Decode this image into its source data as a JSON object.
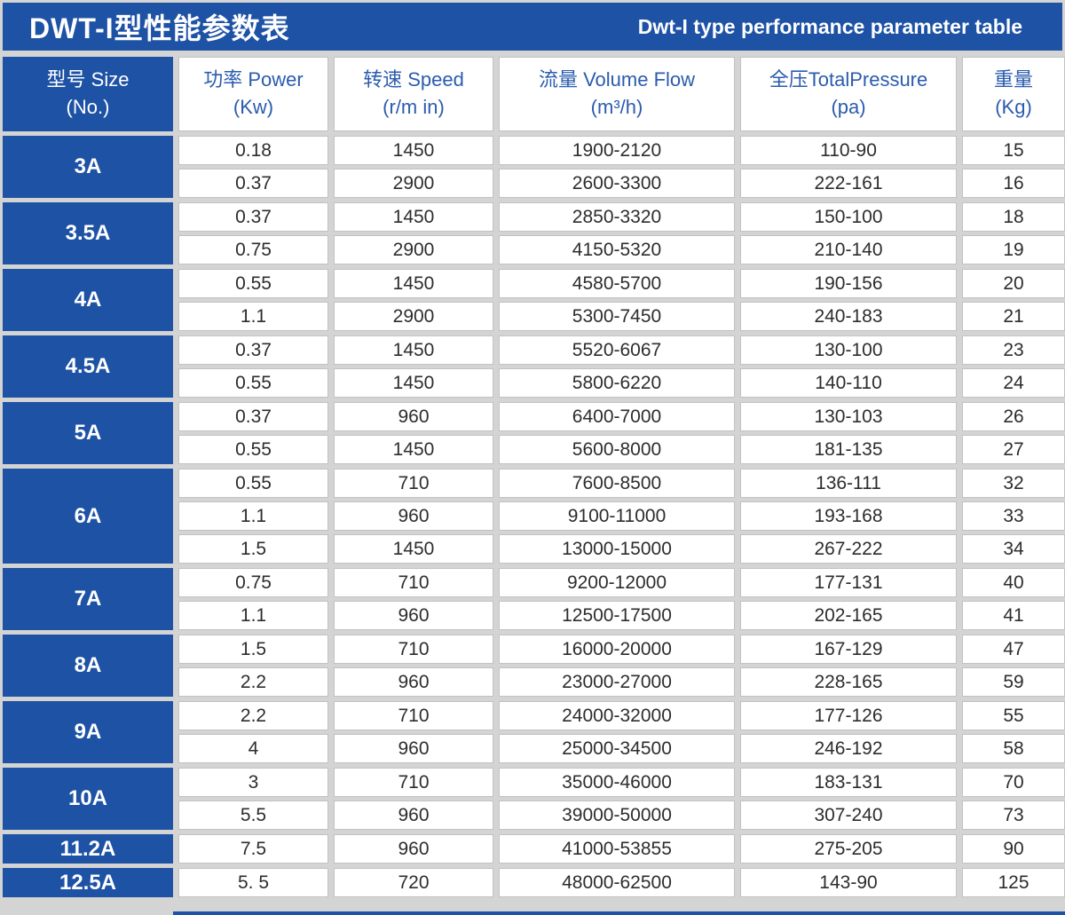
{
  "header": {
    "title_cn": "DWT-I型性能参数表",
    "title_en": "Dwt-I type performance parameter table"
  },
  "colors": {
    "accent_blue": "#1e52a5",
    "header_text_blue": "#2b5cae",
    "grid_gray": "#d4d4d4",
    "cell_white": "#ffffff",
    "data_text": "#2d2d2d"
  },
  "columns": [
    {
      "label": "型号 Size",
      "unit": "(No.)"
    },
    {
      "label": "功率 Power",
      "unit": "(Kw)"
    },
    {
      "label": "转速 Speed",
      "unit": "(r/m in)"
    },
    {
      "label": "流量 Volume Flow",
      "unit": "(m³/h)"
    },
    {
      "label": "全压TotalPressure",
      "unit": "(pa)"
    },
    {
      "label": "重量",
      "unit": "(Kg)"
    }
  ],
  "groups": [
    {
      "size": "3A",
      "rows": [
        [
          "0.18",
          "1450",
          "1900-2120",
          "110-90",
          "15"
        ],
        [
          "0.37",
          "2900",
          "2600-3300",
          "222-161",
          "16"
        ]
      ]
    },
    {
      "size": "3.5A",
      "rows": [
        [
          "0.37",
          "1450",
          "2850-3320",
          "150-100",
          "18"
        ],
        [
          "0.75",
          "2900",
          "4150-5320",
          "210-140",
          "19"
        ]
      ]
    },
    {
      "size": "4A",
      "rows": [
        [
          "0.55",
          "1450",
          "4580-5700",
          "190-156",
          "20"
        ],
        [
          "1.1",
          "2900",
          "5300-7450",
          "240-183",
          "21"
        ]
      ]
    },
    {
      "size": "4.5A",
      "rows": [
        [
          "0.37",
          "1450",
          "5520-6067",
          "130-100",
          "23"
        ],
        [
          "0.55",
          "1450",
          "5800-6220",
          "140-110",
          "24"
        ]
      ]
    },
    {
      "size": "5A",
      "rows": [
        [
          "0.37",
          "960",
          "6400-7000",
          "130-103",
          "26"
        ],
        [
          "0.55",
          "1450",
          "5600-8000",
          "181-135",
          "27"
        ]
      ]
    },
    {
      "size": "6A",
      "rows": [
        [
          "0.55",
          "710",
          "7600-8500",
          "136-111",
          "32"
        ],
        [
          "1.1",
          "960",
          "9100-11000",
          "193-168",
          "33"
        ],
        [
          "1.5",
          "1450",
          "13000-15000",
          "267-222",
          "34"
        ]
      ]
    },
    {
      "size": "7A",
      "rows": [
        [
          "0.75",
          "710",
          "9200-12000",
          "177-131",
          "40"
        ],
        [
          "1.1",
          "960",
          "12500-17500",
          "202-165",
          "41"
        ]
      ]
    },
    {
      "size": "8A",
      "rows": [
        [
          "1.5",
          "710",
          "16000-20000",
          "167-129",
          "47"
        ],
        [
          "2.2",
          "960",
          "23000-27000",
          "228-165",
          "59"
        ]
      ]
    },
    {
      "size": "9A",
      "rows": [
        [
          "2.2",
          "710",
          "24000-32000",
          "177-126",
          "55"
        ],
        [
          "4",
          "960",
          "25000-34500",
          "246-192",
          "58"
        ]
      ]
    },
    {
      "size": "10A",
      "rows": [
        [
          "3",
          "710",
          "35000-46000",
          "183-131",
          "70"
        ],
        [
          "5.5",
          "960",
          "39000-50000",
          "307-240",
          "73"
        ]
      ]
    },
    {
      "size": "11.2A",
      "rows": [
        [
          "7.5",
          "960",
          "41000-53855",
          "275-205",
          "90"
        ]
      ]
    },
    {
      "size": "12.5A",
      "rows": [
        [
          "5. 5",
          "720",
          "48000-62500",
          "143-90",
          "125"
        ]
      ]
    }
  ],
  "chart_data": {
    "type": "table",
    "title": "DWT-I型性能参数表 / Dwt-I type performance parameter table",
    "columns": [
      "型号 Size (No.)",
      "功率 Power (Kw)",
      "转速 Speed (r/m in)",
      "流量 Volume Flow (m³/h)",
      "全压TotalPressure (pa)",
      "重量 (Kg)"
    ],
    "rows": [
      [
        "3A",
        "0.18",
        "1450",
        "1900-2120",
        "110-90",
        "15"
      ],
      [
        "3A",
        "0.37",
        "2900",
        "2600-3300",
        "222-161",
        "16"
      ],
      [
        "3.5A",
        "0.37",
        "1450",
        "2850-3320",
        "150-100",
        "18"
      ],
      [
        "3.5A",
        "0.75",
        "2900",
        "4150-5320",
        "210-140",
        "19"
      ],
      [
        "4A",
        "0.55",
        "1450",
        "4580-5700",
        "190-156",
        "20"
      ],
      [
        "4A",
        "1.1",
        "2900",
        "5300-7450",
        "240-183",
        "21"
      ],
      [
        "4.5A",
        "0.37",
        "1450",
        "5520-6067",
        "130-100",
        "23"
      ],
      [
        "4.5A",
        "0.55",
        "1450",
        "5800-6220",
        "140-110",
        "24"
      ],
      [
        "5A",
        "0.37",
        "960",
        "6400-7000",
        "130-103",
        "26"
      ],
      [
        "5A",
        "0.55",
        "1450",
        "5600-8000",
        "181-135",
        "27"
      ],
      [
        "6A",
        "0.55",
        "710",
        "7600-8500",
        "136-111",
        "32"
      ],
      [
        "6A",
        "1.1",
        "960",
        "9100-11000",
        "193-168",
        "33"
      ],
      [
        "6A",
        "1.5",
        "1450",
        "13000-15000",
        "267-222",
        "34"
      ],
      [
        "7A",
        "0.75",
        "710",
        "9200-12000",
        "177-131",
        "40"
      ],
      [
        "7A",
        "1.1",
        "960",
        "12500-17500",
        "202-165",
        "41"
      ],
      [
        "8A",
        "1.5",
        "710",
        "16000-20000",
        "167-129",
        "47"
      ],
      [
        "8A",
        "2.2",
        "960",
        "23000-27000",
        "228-165",
        "59"
      ],
      [
        "9A",
        "2.2",
        "710",
        "24000-32000",
        "177-126",
        "55"
      ],
      [
        "9A",
        "4",
        "960",
        "25000-34500",
        "246-192",
        "58"
      ],
      [
        "10A",
        "3",
        "710",
        "35000-46000",
        "183-131",
        "70"
      ],
      [
        "10A",
        "5.5",
        "960",
        "39000-50000",
        "307-240",
        "73"
      ],
      [
        "11.2A",
        "7.5",
        "960",
        "41000-53855",
        "275-205",
        "90"
      ],
      [
        "12.5A",
        "5. 5",
        "720",
        "48000-62500",
        "143-90",
        "125"
      ]
    ]
  }
}
